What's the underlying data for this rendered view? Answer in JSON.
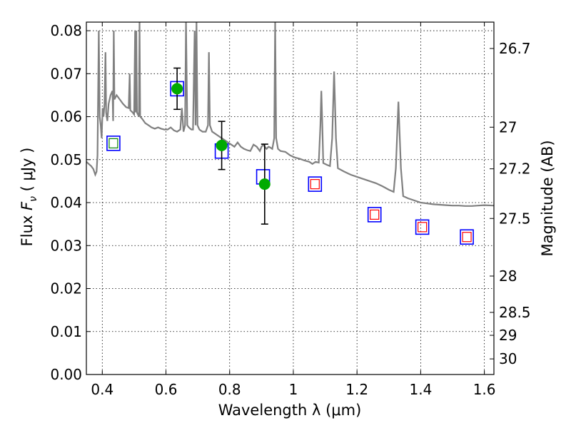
{
  "chart_data": {
    "type": "scatter",
    "xlabel": "Wavelength  λ (μm)",
    "ylabel_parts": [
      "Flux ",
      "F",
      "ν",
      "  ( μJy )"
    ],
    "y2label": "Magnitude (AB)",
    "xlim": [
      0.35,
      1.63
    ],
    "ylim": [
      0.0,
      0.082
    ],
    "grid": true,
    "x_ticks": [
      0.4,
      0.6,
      0.8,
      1.0,
      1.2,
      1.4,
      1.6
    ],
    "x_tick_labels": [
      "0.4",
      "0.6",
      "0.8",
      "1",
      "1.2",
      "1.4",
      "1.6"
    ],
    "y_ticks": [
      0.0,
      0.01,
      0.02,
      0.03,
      0.04,
      0.05,
      0.06,
      0.07,
      0.08
    ],
    "y_tick_labels": [
      "0.00",
      "0.01",
      "0.02",
      "0.03",
      "0.04",
      "0.05",
      "0.06",
      "0.07",
      "0.08"
    ],
    "y2_ticks": [
      {
        "mag": 26.7,
        "label": "26.7"
      },
      {
        "mag": 27,
        "label": "27"
      },
      {
        "mag": 27.2,
        "label": "27.2"
      },
      {
        "mag": 27.5,
        "label": "27.5"
      },
      {
        "mag": 28,
        "label": "28"
      },
      {
        "mag": 28.5,
        "label": "28.5"
      },
      {
        "mag": 29,
        "label": "29"
      },
      {
        "mag": 30,
        "label": "30"
      }
    ],
    "colors": {
      "model_spectrum": "#808080",
      "observed": "#00aa00",
      "model_photometry": "#0000ff",
      "model_photometry_red": "#ff0000",
      "model_photometry_green": "#008000",
      "errorbar": "#000000"
    },
    "series": [
      {
        "type": "line",
        "points": [
          [
            0.35,
            0.0495
          ],
          [
            0.365,
            0.0485
          ],
          [
            0.372,
            0.0478
          ],
          [
            0.378,
            0.0465
          ],
          [
            0.382,
            0.0472
          ],
          [
            0.385,
            0.051
          ],
          [
            0.389,
            0.08
          ],
          [
            0.392,
            0.06
          ],
          [
            0.395,
            0.058
          ],
          [
            0.398,
            0.055
          ],
          [
            0.401,
            0.062
          ],
          [
            0.404,
            0.06
          ],
          [
            0.407,
            0.063
          ],
          [
            0.41,
            0.075
          ],
          [
            0.412,
            0.061
          ],
          [
            0.416,
            0.059
          ],
          [
            0.42,
            0.063
          ],
          [
            0.426,
            0.065
          ],
          [
            0.432,
            0.066
          ],
          [
            0.434,
            0.059
          ],
          [
            0.436,
            0.08
          ],
          [
            0.438,
            0.064
          ],
          [
            0.445,
            0.065
          ],
          [
            0.455,
            0.064
          ],
          [
            0.465,
            0.063
          ],
          [
            0.475,
            0.0622
          ],
          [
            0.483,
            0.062
          ],
          [
            0.486,
            0.07
          ],
          [
            0.488,
            0.0615
          ],
          [
            0.495,
            0.061
          ],
          [
            0.5,
            0.0605
          ],
          [
            0.503,
            0.08
          ],
          [
            0.505,
            0.061
          ],
          [
            0.507,
            0.08
          ],
          [
            0.509,
            0.061
          ],
          [
            0.515,
            0.06
          ],
          [
            0.517,
            0.082
          ],
          [
            0.519,
            0.06
          ],
          [
            0.525,
            0.0595
          ],
          [
            0.535,
            0.0585
          ],
          [
            0.545,
            0.058
          ],
          [
            0.555,
            0.0575
          ],
          [
            0.565,
            0.0572
          ],
          [
            0.575,
            0.0575
          ],
          [
            0.585,
            0.0572
          ],
          [
            0.595,
            0.057
          ],
          [
            0.605,
            0.057
          ],
          [
            0.615,
            0.0575
          ],
          [
            0.625,
            0.0568
          ],
          [
            0.635,
            0.0565
          ],
          [
            0.645,
            0.057
          ],
          [
            0.65,
            0.062
          ],
          [
            0.655,
            0.0565
          ],
          [
            0.66,
            0.058
          ],
          [
            0.663,
            0.082
          ],
          [
            0.667,
            0.058
          ],
          [
            0.672,
            0.0575
          ],
          [
            0.68,
            0.057
          ],
          [
            0.685,
            0.057
          ],
          [
            0.69,
            0.08
          ],
          [
            0.693,
            0.058
          ],
          [
            0.696,
            0.082
          ],
          [
            0.699,
            0.058
          ],
          [
            0.705,
            0.057
          ],
          [
            0.715,
            0.0565
          ],
          [
            0.725,
            0.0565
          ],
          [
            0.732,
            0.058
          ],
          [
            0.735,
            0.075
          ],
          [
            0.738,
            0.058
          ],
          [
            0.745,
            0.0565
          ],
          [
            0.755,
            0.056
          ],
          [
            0.765,
            0.0555
          ],
          [
            0.775,
            0.055
          ],
          [
            0.785,
            0.0545
          ],
          [
            0.795,
            0.054
          ],
          [
            0.805,
            0.0535
          ],
          [
            0.815,
            0.053
          ],
          [
            0.825,
            0.054
          ],
          [
            0.835,
            0.053
          ],
          [
            0.845,
            0.0525
          ],
          [
            0.855,
            0.0522
          ],
          [
            0.865,
            0.052
          ],
          [
            0.875,
            0.0535
          ],
          [
            0.885,
            0.053
          ],
          [
            0.895,
            0.052
          ],
          [
            0.9,
            0.053
          ],
          [
            0.906,
            0.0535
          ],
          [
            0.91,
            0.053
          ],
          [
            0.916,
            0.0525
          ],
          [
            0.922,
            0.053
          ],
          [
            0.928,
            0.0528
          ],
          [
            0.934,
            0.0525
          ],
          [
            0.94,
            0.055
          ],
          [
            0.943,
            0.082
          ],
          [
            0.946,
            0.055
          ],
          [
            0.952,
            0.0525
          ],
          [
            0.96,
            0.052
          ],
          [
            0.975,
            0.0518
          ],
          [
            0.99,
            0.051
          ],
          [
            1.005,
            0.0505
          ],
          [
            1.02,
            0.0502
          ],
          [
            1.035,
            0.0498
          ],
          [
            1.05,
            0.0495
          ],
          [
            1.06,
            0.049
          ],
          [
            1.07,
            0.0495
          ],
          [
            1.08,
            0.0493
          ],
          [
            1.085,
            0.058
          ],
          [
            1.088,
            0.066
          ],
          [
            1.091,
            0.058
          ],
          [
            1.094,
            0.0492
          ],
          [
            1.105,
            0.0488
          ],
          [
            1.115,
            0.0485
          ],
          [
            1.122,
            0.055
          ],
          [
            1.128,
            0.0705
          ],
          [
            1.134,
            0.055
          ],
          [
            1.14,
            0.048
          ],
          [
            1.16,
            0.0472
          ],
          [
            1.18,
            0.0465
          ],
          [
            1.2,
            0.046
          ],
          [
            1.22,
            0.0455
          ],
          [
            1.24,
            0.045
          ],
          [
            1.26,
            0.0445
          ],
          [
            1.28,
            0.0438
          ],
          [
            1.3,
            0.043
          ],
          [
            1.315,
            0.0425
          ],
          [
            1.322,
            0.048
          ],
          [
            1.33,
            0.0635
          ],
          [
            1.338,
            0.048
          ],
          [
            1.345,
            0.0415
          ],
          [
            1.36,
            0.041
          ],
          [
            1.38,
            0.0405
          ],
          [
            1.4,
            0.04
          ],
          [
            1.42,
            0.0398
          ],
          [
            1.44,
            0.0396
          ],
          [
            1.46,
            0.0395
          ],
          [
            1.48,
            0.0394
          ],
          [
            1.5,
            0.0393
          ],
          [
            1.52,
            0.0393
          ],
          [
            1.54,
            0.0392
          ],
          [
            1.56,
            0.0392
          ],
          [
            1.58,
            0.0393
          ],
          [
            1.6,
            0.0394
          ],
          [
            1.63,
            0.0393
          ]
        ]
      },
      {
        "type": "square",
        "points": [
          {
            "x": 0.435,
            "y": 0.0538,
            "inner": "green"
          },
          {
            "x": 0.635,
            "y": 0.0665,
            "inner": "none"
          },
          {
            "x": 0.775,
            "y": 0.052,
            "inner": "none"
          },
          {
            "x": 0.905,
            "y": 0.046,
            "inner": "none"
          },
          {
            "x": 1.068,
            "y": 0.0443,
            "inner": "red"
          },
          {
            "x": 1.255,
            "y": 0.0372,
            "inner": "red"
          },
          {
            "x": 1.405,
            "y": 0.0343,
            "inner": "red"
          },
          {
            "x": 1.545,
            "y": 0.032,
            "inner": "red"
          }
        ]
      },
      {
        "type": "errorbar",
        "points": [
          {
            "x": 0.635,
            "y": 0.0665,
            "yerr": 0.0048
          },
          {
            "x": 0.775,
            "y": 0.0533,
            "yerr": 0.0056
          },
          {
            "x": 0.91,
            "y": 0.0443,
            "yerr": 0.0093
          }
        ]
      }
    ]
  }
}
